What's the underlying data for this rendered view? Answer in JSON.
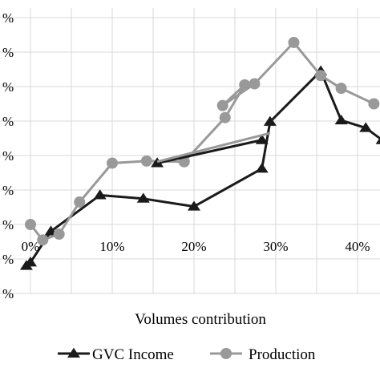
{
  "chart_data": {
    "type": "line",
    "title": "",
    "xlabel": "Volumes contribution",
    "ylabel": "",
    "xlim": [
      -0.07,
      0.42
    ],
    "ylim": [
      -0.02,
      0.078
    ],
    "x_ticks": [
      0,
      0.1,
      0.2,
      0.3,
      0.4
    ],
    "x_tick_labels": [
      "0%",
      "10%",
      "20%",
      "30%",
      "40%"
    ],
    "y_ticks": [
      -0.02,
      -0.01,
      0.0,
      0.01,
      0.02,
      0.03,
      0.04,
      0.05,
      0.06,
      0.07
    ],
    "y_tick_labels": [
      "%",
      "%",
      "%",
      "%",
      "%",
      "%",
      "%",
      "%",
      "%",
      "%"
    ],
    "grid": true,
    "legend": "bottom",
    "series": [
      {
        "name": "GVC Income",
        "color": "#1a1a1a",
        "marker": "triangle",
        "points": [
          [
            -0.005,
            -0.012
          ],
          [
            0.0,
            -0.011
          ],
          [
            0.025,
            -0.002
          ],
          [
            0.085,
            0.0085
          ],
          [
            0.138,
            0.0075
          ],
          [
            0.2,
            0.0052
          ],
          [
            0.283,
            0.0162
          ],
          [
            0.293,
            0.0298
          ],
          [
            0.355,
            0.0445
          ],
          [
            0.38,
            0.0302
          ],
          [
            0.41,
            0.028
          ],
          [
            0.43,
            0.0245
          ]
        ]
      },
      {
        "name": "Production",
        "color": "#999999",
        "marker": "circle",
        "points": [
          [
            0.0,
            0.0
          ],
          [
            0.015,
            -0.0045
          ],
          [
            0.035,
            -0.0028
          ],
          [
            0.06,
            0.0065
          ],
          [
            0.1,
            0.0178
          ],
          [
            0.142,
            0.0184
          ],
          [
            0.188,
            0.0182
          ],
          [
            0.238,
            0.031
          ],
          [
            0.262,
            0.0405
          ],
          [
            0.235,
            0.0345
          ],
          [
            0.274,
            0.0408
          ],
          [
            0.322,
            0.0528
          ],
          [
            0.355,
            0.0432
          ],
          [
            0.38,
            0.0395
          ],
          [
            0.42,
            0.035
          ]
        ]
      },
      {
        "name": "",
        "color": "#1a1a1a",
        "marker": "triangle",
        "points": [
          [
            0.155,
            0.0178
          ],
          [
            0.283,
            0.0245
          ]
        ]
      },
      {
        "name": "",
        "color": "#999999",
        "marker": "none",
        "points": [
          [
            0.155,
            0.0182
          ],
          [
            0.293,
            0.0265
          ]
        ]
      }
    ]
  }
}
